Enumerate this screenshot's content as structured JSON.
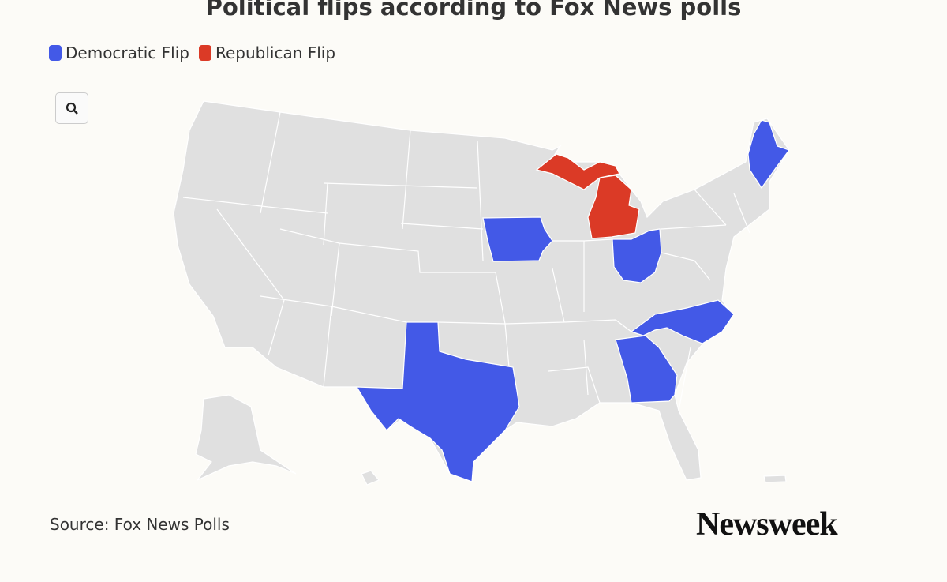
{
  "title": "Political flips according to Fox News polls",
  "legend": [
    {
      "label": "Democratic Flip",
      "color": "#4359e7"
    },
    {
      "label": "Republican Flip",
      "color": "#db3a26"
    }
  ],
  "source": "Source: Fox News Polls",
  "brand": "Newsweek"
}
